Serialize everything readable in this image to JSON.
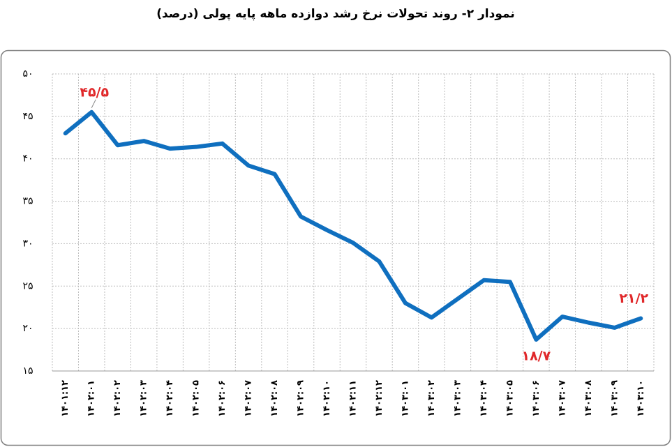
{
  "chart_data": {
    "type": "line",
    "title": "نمودار ۲- روند تحولات نرخ رشد دوازده ماهه پایه پولی (درصد)",
    "categories": [
      "۱۴۰۱:۱۲",
      "۱۴۰۲:۰۱",
      "۱۴۰۲:۰۲",
      "۱۴۰۲:۰۳",
      "۱۴۰۲:۰۴",
      "۱۴۰۲:۰۵",
      "۱۴۰۲:۰۶",
      "۱۴۰۲:۰۷",
      "۱۴۰۲:۰۸",
      "۱۴۰۲:۰۹",
      "۱۴۰۲:۱۰",
      "۱۴۰۲:۱۱",
      "۱۴۰۲:۱۲",
      "۱۴۰۳:۰۱",
      "۱۴۰۳:۰۲",
      "۱۴۰۳:۰۳",
      "۱۴۰۳:۰۴",
      "۱۴۰۳:۰۵",
      "۱۴۰۳:۰۶",
      "۱۴۰۳:۰۷",
      "۱۴۰۳:۰۸",
      "۱۴۰۳:۰۹",
      "۱۴۰۳:۱۰"
    ],
    "values": [
      43.0,
      45.5,
      41.6,
      42.1,
      41.2,
      41.4,
      41.8,
      39.2,
      38.2,
      33.2,
      31.6,
      30.1,
      27.9,
      23.0,
      21.3,
      23.5,
      25.7,
      25.5,
      18.7,
      21.4,
      20.7,
      20.1,
      21.2
    ],
    "value_labels": [
      null,
      "۴۵/۵",
      null,
      null,
      null,
      null,
      null,
      null,
      null,
      null,
      null,
      null,
      null,
      null,
      null,
      null,
      null,
      null,
      "۱۸/۷",
      null,
      null,
      null,
      "۲۱/۲"
    ],
    "color": "#0f6fbf",
    "label_color": "#e0282a",
    "ylim": [
      15,
      50
    ],
    "yticks": [
      {
        "value": 15,
        "label": "۱۵"
      },
      {
        "value": 20,
        "label": "۲۰"
      },
      {
        "value": 25,
        "label": "۲۵"
      },
      {
        "value": 30,
        "label": "۳۰"
      },
      {
        "value": 35,
        "label": "۳۵"
      },
      {
        "value": 40,
        "label": "۴۰"
      },
      {
        "value": 45,
        "label": "۴۵"
      },
      {
        "value": 50,
        "label": "۵۰"
      }
    ],
    "grid": true
  }
}
